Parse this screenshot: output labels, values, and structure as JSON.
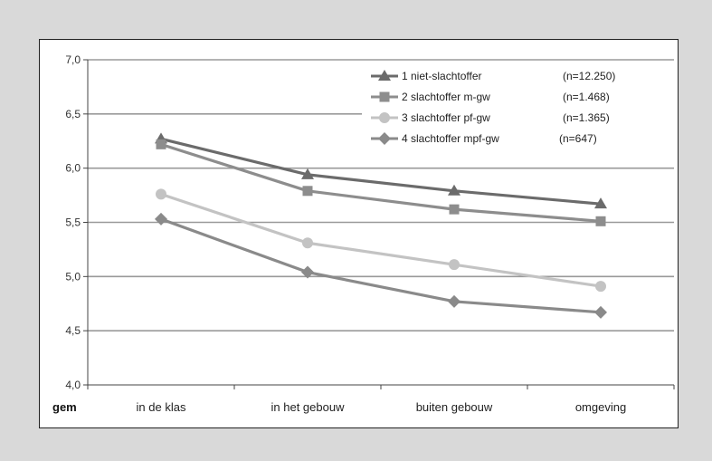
{
  "chart_data": {
    "type": "line",
    "xlabel": "gem",
    "categories": [
      "in de klas",
      "in het gebouw",
      "buiten gebouw",
      "omgeving"
    ],
    "y_ticks": [
      "4,0",
      "4,5",
      "5,0",
      "5,5",
      "6,0",
      "6,5",
      "7,0"
    ],
    "ylim": [
      4.0,
      7.0
    ],
    "grid": true,
    "legend_position": "top-right",
    "series": [
      {
        "name": "1 niet-slachtoffer",
        "n": "(n=12.250)",
        "marker": "triangle",
        "color": "#6b6b6b",
        "values": [
          6.27,
          5.94,
          5.79,
          5.67
        ]
      },
      {
        "name": "2 slachtoffer m-gw",
        "n": "(n=1.468)",
        "marker": "square",
        "color": "#8d8d8d",
        "values": [
          6.22,
          5.79,
          5.62,
          5.51
        ]
      },
      {
        "name": "3 slachtoffer pf-gw",
        "n": "(n=1.365)",
        "marker": "circle",
        "color": "#c3c3c3",
        "values": [
          5.76,
          5.31,
          5.11,
          4.91
        ]
      },
      {
        "name": "4 slachtoffer mpf-gw",
        "n": "(n=647)",
        "marker": "diamond",
        "color": "#8a8a8a",
        "values": [
          5.53,
          5.04,
          4.77,
          4.67
        ]
      }
    ]
  }
}
